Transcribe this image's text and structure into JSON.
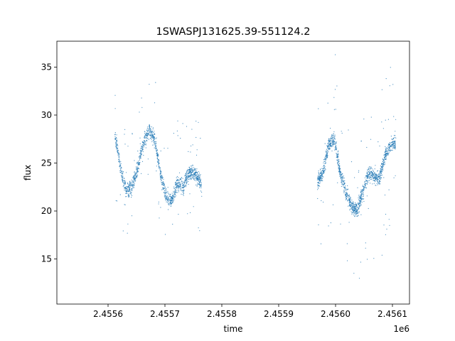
{
  "chart_data": {
    "type": "scatter",
    "title": "1SWASPJ131625.39-551124.2",
    "xlabel": "time",
    "ylabel": "flux",
    "x_offset_label": "1e6",
    "xlim": [
      2.45551,
      2.45613
    ],
    "ylim": [
      10.3,
      37.7
    ],
    "x_ticks": [
      2.4556,
      2.4557,
      2.4558,
      2.4559,
      2.456,
      2.4561
    ],
    "x_tick_labels": [
      "2.4556",
      "2.4557",
      "2.4558",
      "2.4559",
      "2.4560",
      "2.4561"
    ],
    "y_ticks": [
      15,
      20,
      25,
      30,
      35
    ],
    "y_tick_labels": [
      "15",
      "20",
      "25",
      "30",
      "35"
    ],
    "grid": false,
    "legend": "none",
    "colors": {
      "points": "#1f77b4"
    },
    "segments": [
      {
        "x": [
          2.455612,
          2.455622,
          2.455632,
          2.455642,
          2.455652,
          2.455662,
          2.455672,
          2.455682,
          2.455692,
          2.455702,
          2.455712,
          2.455722,
          2.455732,
          2.455742,
          2.455752,
          2.455762,
          2.455765
        ],
        "y": [
          28.0,
          24.5,
          22.0,
          22.5,
          24.5,
          27.0,
          28.5,
          27.5,
          24.0,
          21.5,
          21.0,
          23.0,
          22.5,
          24.0,
          24.0,
          23.0,
          22.0
        ]
      },
      {
        "x": [
          2.455968,
          2.455978,
          2.455988,
          2.455998,
          2.456008,
          2.456018,
          2.456028,
          2.456038,
          2.456048,
          2.456058,
          2.456068,
          2.456078,
          2.456088,
          2.456098,
          2.456106
        ],
        "y": [
          23.0,
          24.0,
          27.0,
          27.5,
          24.0,
          22.0,
          20.5,
          20.0,
          22.0,
          24.0,
          23.5,
          23.5,
          26.0,
          27.0,
          27.0
        ]
      }
    ]
  }
}
